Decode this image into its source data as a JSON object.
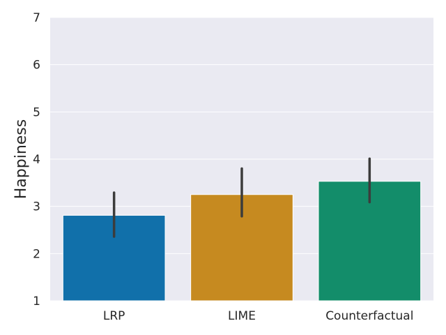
{
  "chart_data": {
    "type": "bar",
    "title": "",
    "xlabel": "",
    "ylabel": "Happiness",
    "categories": [
      "LRP",
      "LIME",
      "Counterfactual"
    ],
    "values": [
      2.81,
      3.25,
      3.53
    ],
    "error_bars": [
      {
        "low": 2.36,
        "high": 3.29
      },
      {
        "low": 2.79,
        "high": 3.8
      },
      {
        "low": 3.09,
        "high": 4.01
      }
    ],
    "ylim": [
      1,
      7
    ],
    "yticks": [
      "1",
      "2",
      "3",
      "4",
      "5",
      "6",
      "7"
    ],
    "grid": true,
    "legend": "none",
    "colors": {
      "bars": [
        "#1170aa",
        "#c68a20",
        "#138d6a"
      ],
      "plot_background": "#eaeaf2",
      "grid": "#ffffff",
      "error_bar": "#3c3c3c"
    }
  }
}
